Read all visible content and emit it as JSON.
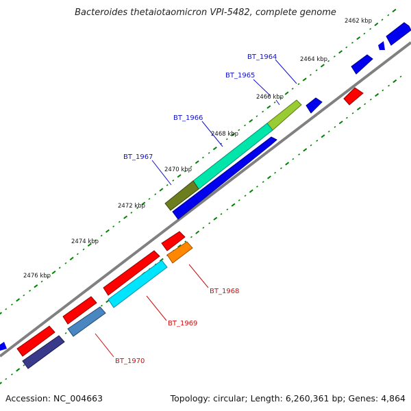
{
  "title": "Bacteroides thetaiotaomicron VPI-5482, complete genome",
  "footer": {
    "accession": "Accession: NC_004663",
    "topology": "Topology: circular; Length: 6,260,361 bp; Genes: 4,864"
  },
  "scale_labels": [
    "2462 kbp",
    "2464 kbp",
    "2466 kbp",
    "2468 kbp",
    "2470 kbp",
    "2472 kbp",
    "2474 kbp",
    "2476 kbp"
  ],
  "genes_forward": [
    {
      "label": "BT_1964",
      "color": "#99cc33"
    },
    {
      "label": "BT_1965",
      "color": "#00e5aa"
    },
    {
      "label": "BT_1966",
      "color": "#00e5aa"
    },
    {
      "label": "BT_1967",
      "color": "#6b7d1e"
    }
  ],
  "genes_reverse": [
    {
      "label": "BT_1968",
      "color": "#ff8800"
    },
    {
      "label": "BT_1969",
      "color": "#00e5ff"
    },
    {
      "label": "BT_1970",
      "color": "#4a86c0"
    }
  ],
  "colors": {
    "backbone": "#808080",
    "forward_strand": "#0000ee",
    "reverse_strand": "#ff0000",
    "tick": "#008000",
    "top_label": "#1010c8",
    "bottom_label": "#c81010"
  }
}
